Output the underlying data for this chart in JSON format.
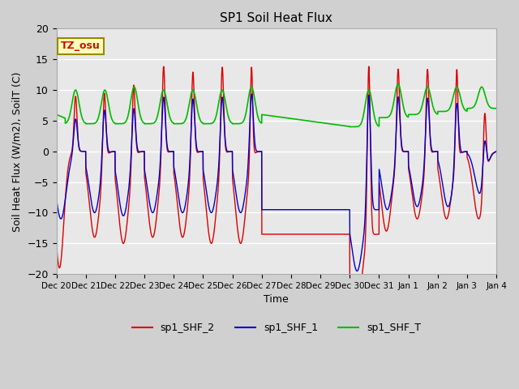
{
  "title": "SP1 Soil Heat Flux",
  "xlabel": "Time",
  "ylabel": "Soil Heat Flux (W/m2), SoilT (C)",
  "ylim": [
    -20,
    20
  ],
  "fig_facecolor": "#d0d0d0",
  "plot_facecolor": "#e8e8e8",
  "grid_color": "white",
  "tz_label": "TZ_osu",
  "legend": [
    "sp1_SHF_2",
    "sp1_SHF_1",
    "sp1_SHF_T"
  ],
  "line_colors": [
    "#dd0000",
    "#0000cc",
    "#00bb00"
  ],
  "x_tick_labels": [
    "Dec 20",
    "Dec 21",
    "Dec 22",
    "Dec 23",
    "Dec 24",
    "Dec 25",
    "Dec 26",
    "Dec 27",
    "Dec 28",
    "Dec 29",
    "Dec 30",
    "Dec 31",
    "Jan 1",
    "Jan 2",
    "Jan 3",
    "Jan 4"
  ]
}
